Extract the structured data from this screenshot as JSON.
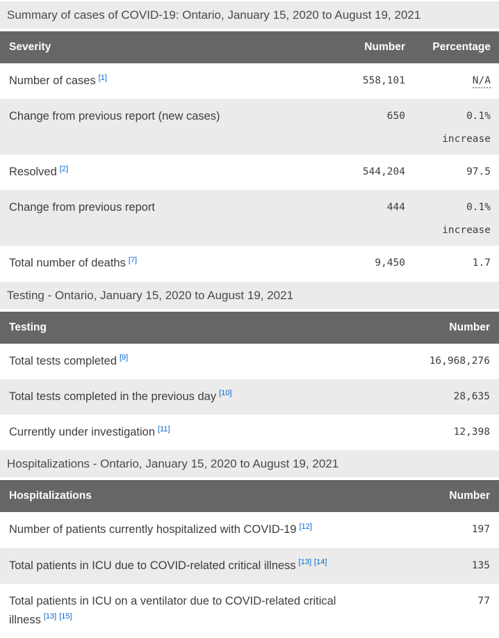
{
  "colors": {
    "header_bg": "#666666",
    "header_text": "#ffffff",
    "stripe_bg": "#ebebeb",
    "caption_bg": "#ebebeb",
    "body_text": "#3d3d3d",
    "link": "#0066cc"
  },
  "sections": [
    {
      "id": "severity",
      "caption": "Summary of cases of COVID-19: Ontario, January 15, 2020 to August 19, 2021",
      "columns": [
        "Severity",
        "Number",
        "Percentage"
      ],
      "rows": [
        {
          "label": "Number of cases",
          "refs": [
            "[1]"
          ],
          "number": "558,101",
          "percentage_lines": [
            "N/A"
          ],
          "abbr": true
        },
        {
          "label": "Change from previous report (new cases)",
          "refs": [],
          "number": "650",
          "percentage_lines": [
            "0.1%",
            "increase"
          ]
        },
        {
          "label": "Resolved",
          "refs": [
            "[2]"
          ],
          "number": "544,204",
          "percentage_lines": [
            "97.5"
          ]
        },
        {
          "label": "Change from previous report",
          "refs": [],
          "number": "444",
          "percentage_lines": [
            "0.1%",
            "increase"
          ]
        },
        {
          "label": "Total number of deaths",
          "refs": [
            "[7]"
          ],
          "number": "9,450",
          "percentage_lines": [
            "1.7"
          ]
        }
      ]
    },
    {
      "id": "testing",
      "caption": "Testing - Ontario, January 15, 2020 to August 19, 2021",
      "columns": [
        "Testing",
        "Number"
      ],
      "rows": [
        {
          "label": "Total tests completed",
          "refs": [
            "[9]"
          ],
          "number": "16,968,276"
        },
        {
          "label": "Total tests completed in the previous day",
          "refs": [
            "[10]"
          ],
          "number": "28,635"
        },
        {
          "label": "Currently under investigation",
          "refs": [
            "[11]"
          ],
          "number": "12,398"
        }
      ]
    },
    {
      "id": "hospitalizations",
      "caption": "Hospitalizations - Ontario, January 15, 2020 to August 19, 2021",
      "columns": [
        "Hospitalizations",
        "Number"
      ],
      "rows": [
        {
          "label": "Number of patients currently hospitalized with COVID-19",
          "refs": [
            "[12]"
          ],
          "number": "197"
        },
        {
          "label": "Total patients in ICU due to COVID-related critical illness",
          "refs": [
            "[13]",
            "[14]"
          ],
          "number": "135"
        },
        {
          "label": "Total patients in ICU on a ventilator due to COVID-related critical illness",
          "refs": [
            "[13]",
            "[15]"
          ],
          "number": "77"
        }
      ]
    }
  ]
}
